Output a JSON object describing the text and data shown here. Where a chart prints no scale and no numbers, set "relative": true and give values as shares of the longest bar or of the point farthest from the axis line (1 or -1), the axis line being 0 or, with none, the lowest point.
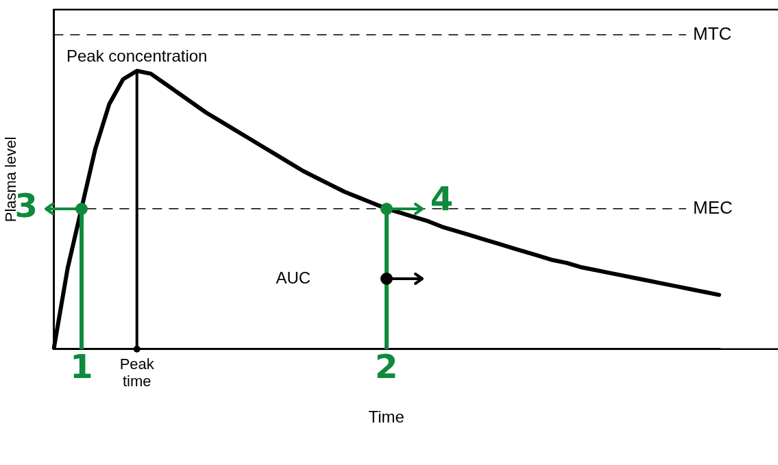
{
  "chart_data": {
    "type": "line",
    "relative": true,
    "xlabel": "Time",
    "ylabel": "Plasma level",
    "categories": [
      null,
      null,
      null,
      null,
      null,
      null,
      null,
      null,
      null,
      null,
      null,
      null,
      null,
      null,
      null,
      null,
      null,
      null,
      null,
      null,
      null,
      null,
      null,
      null,
      null,
      null,
      null,
      null,
      null,
      null,
      null,
      null,
      null,
      null,
      null,
      null,
      null,
      null,
      null,
      null,
      null,
      null,
      null,
      null,
      null,
      null,
      null,
      null,
      null
    ],
    "series": [
      {
        "color": "#000000",
        "values": [
          0,
          0.29,
          0.505,
          0.72,
          0.88,
          0.97,
          1,
          0.99,
          0.955,
          0.92,
          0.885,
          0.85,
          0.82,
          0.79,
          0.76,
          0.73,
          0.7,
          0.67,
          0.64,
          0.615,
          0.59,
          0.565,
          0.545,
          0.525,
          0.505,
          0.49,
          0.475,
          0.46,
          0.44,
          0.425,
          0.41,
          0.395,
          0.38,
          0.365,
          0.35,
          0.335,
          0.32,
          0.31,
          0.295,
          0.285,
          0.275,
          0.265,
          0.255,
          0.245,
          0.235,
          0.225,
          0.215,
          0.205,
          0.195
        ]
      }
    ],
    "ref_lines": [
      {
        "axis": "y",
        "value": 1.13,
        "label": "MTC",
        "color": "#000000",
        "line_style": "dashed"
      },
      {
        "axis": "y",
        "value": 0.505,
        "label": "MEC",
        "color": "#000000",
        "line_style": "dashed"
      }
    ],
    "annotations": [
      {
        "text": "Peak concentration",
        "y": 1
      },
      {
        "text": "Peak time",
        "y": 0
      },
      "AUC",
      "1",
      "2",
      "3",
      "4"
    ],
    "legend": false
  }
}
